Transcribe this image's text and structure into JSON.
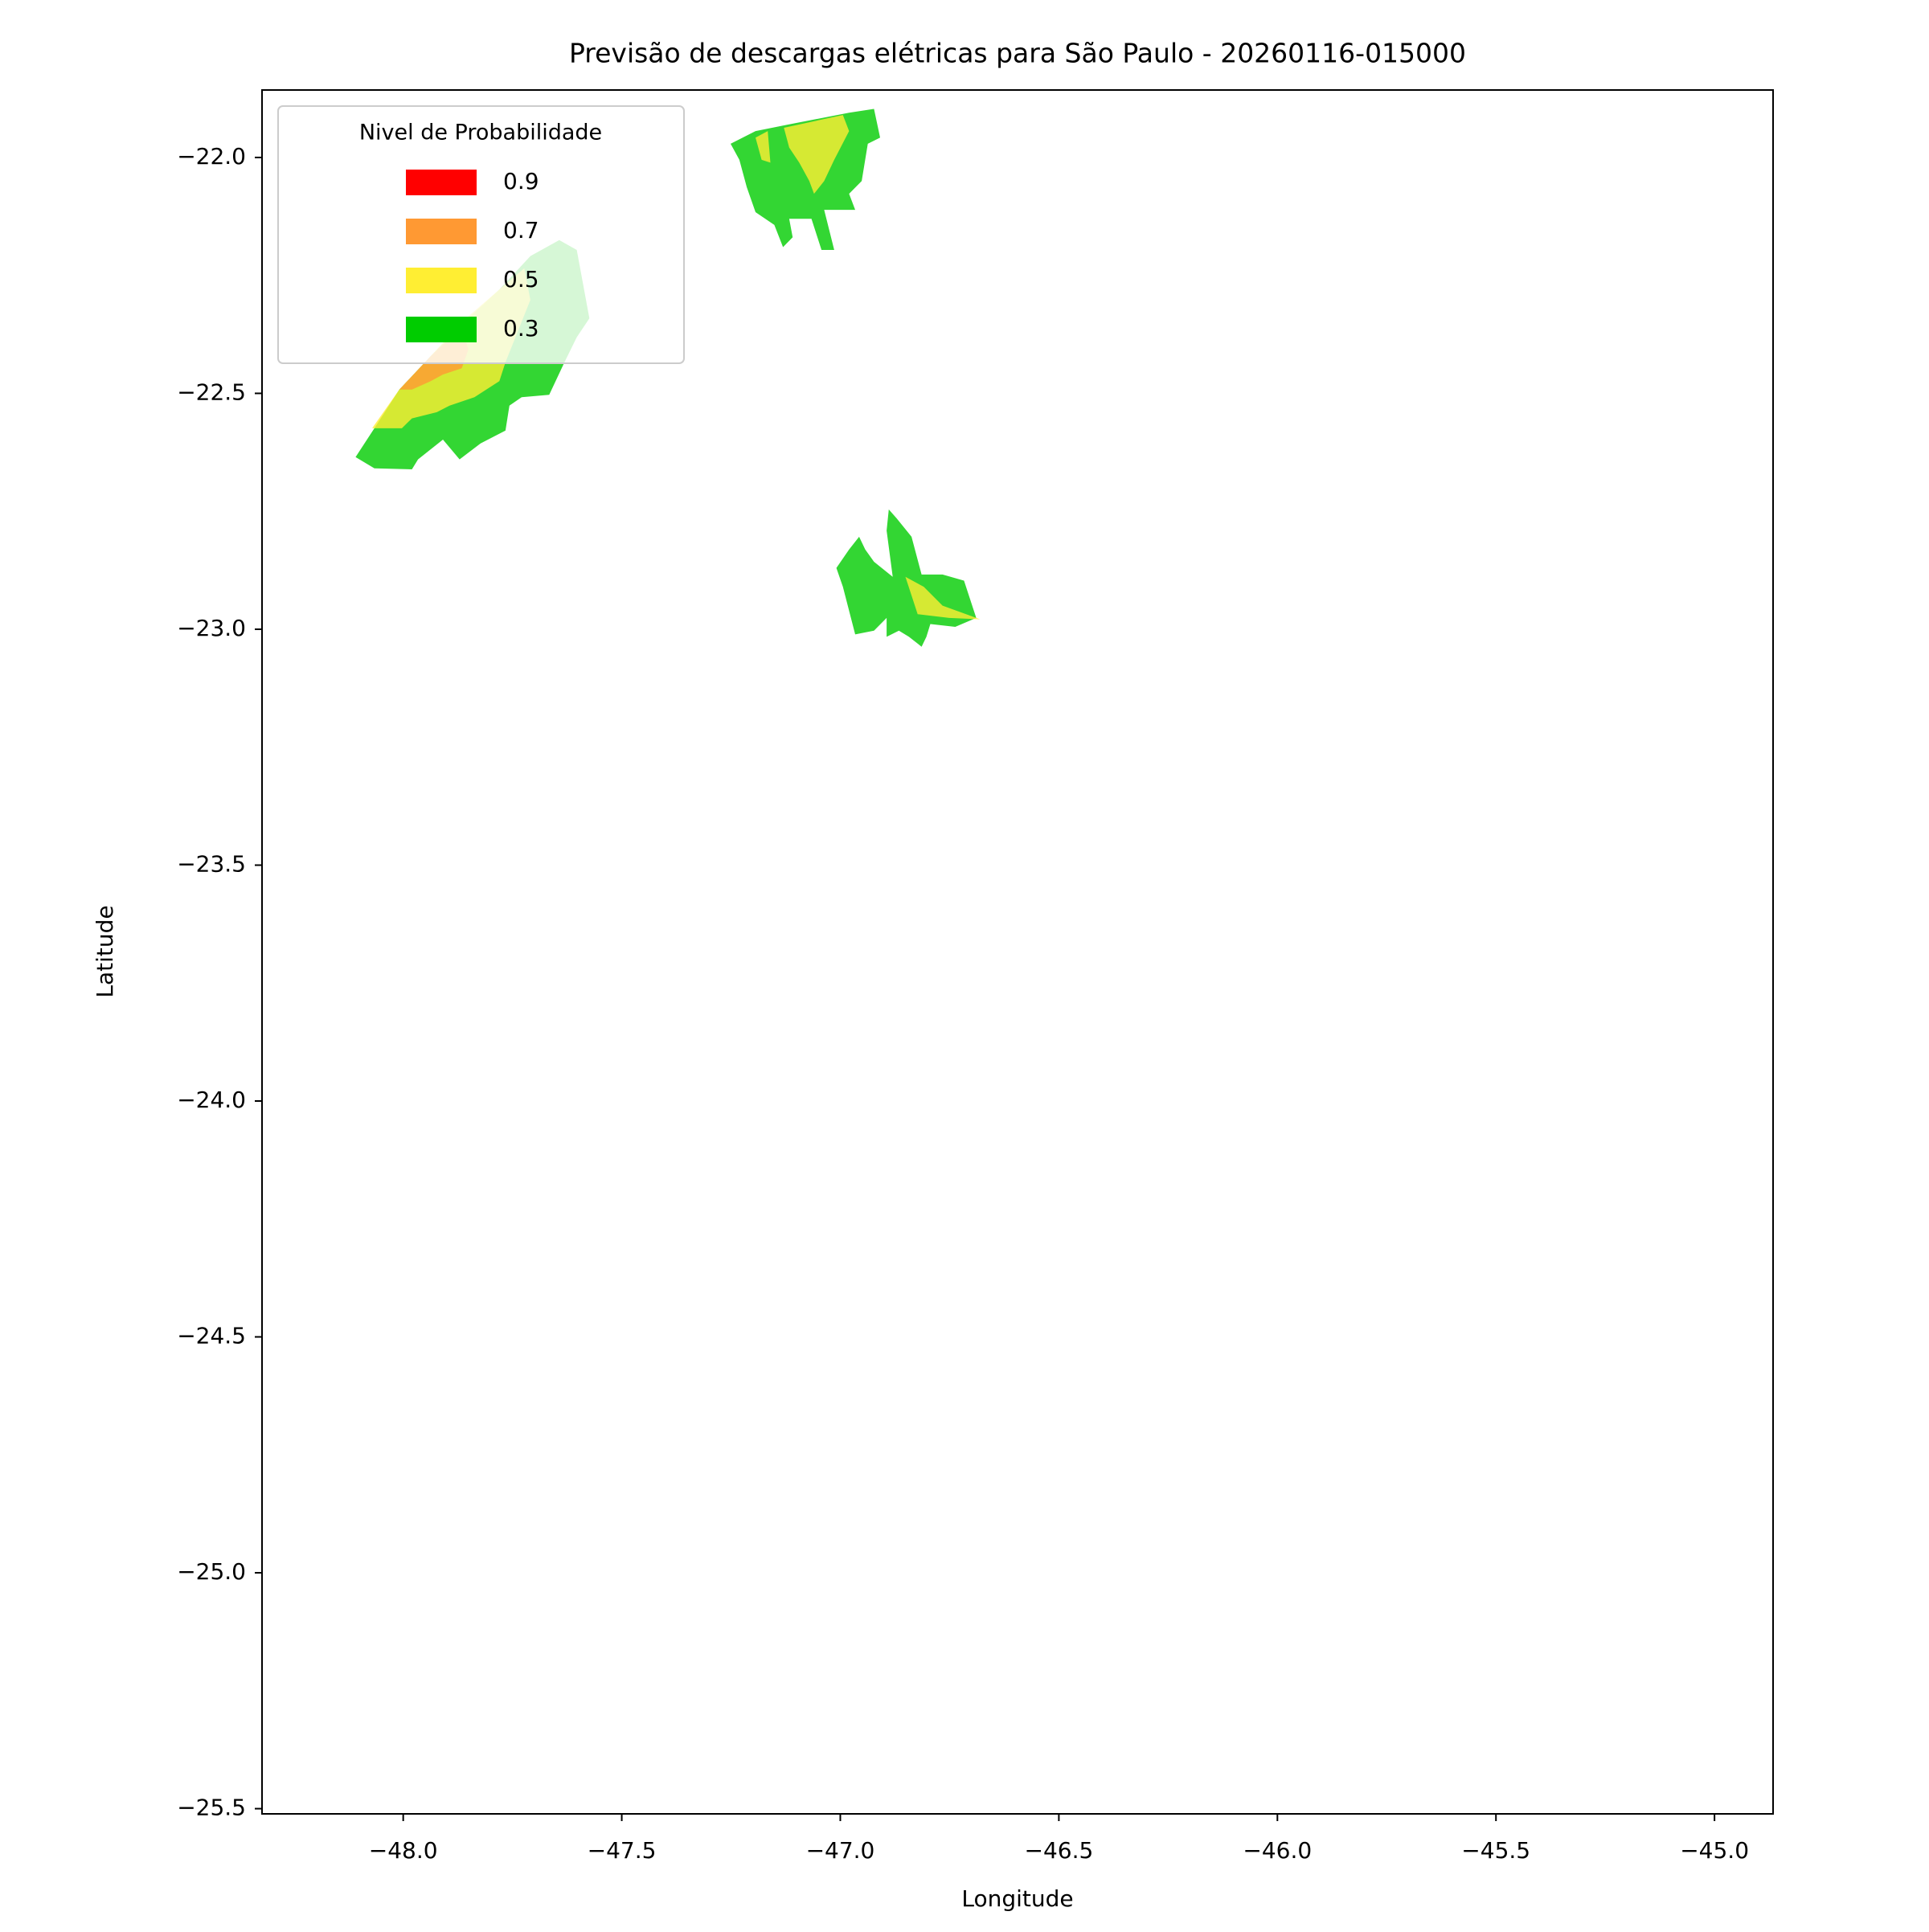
{
  "chart_data": {
    "type": "filled-contour",
    "title": "Previsão de descargas elétricas para São Paulo - 20260116-015000",
    "xlabel": "Longitude",
    "ylabel": "Latitude",
    "legend_title": "Nivel de Probabilidade",
    "legend": "upper left",
    "xlim": [
      -48.323,
      -44.866
    ],
    "ylim": [
      -25.511,
      -21.857
    ],
    "xticks": [
      {
        "value": -48,
        "label": "−48.0"
      },
      {
        "value": -47.5,
        "label": "−47.5"
      },
      {
        "value": -47,
        "label": "−47.0"
      },
      {
        "value": -46.5,
        "label": "−46.5"
      },
      {
        "value": -46,
        "label": "−46.0"
      },
      {
        "value": -45.5,
        "label": "−45.5"
      },
      {
        "value": -45,
        "label": "−45.0"
      }
    ],
    "yticks": [
      {
        "value": -22,
        "label": "−22.0"
      },
      {
        "value": -22.5,
        "label": "−22.5"
      },
      {
        "value": -23,
        "label": "−23.0"
      },
      {
        "value": -23.5,
        "label": "−23.5"
      },
      {
        "value": -24,
        "label": "−24.0"
      },
      {
        "value": -24.5,
        "label": "−24.5"
      },
      {
        "value": -25,
        "label": "−25.0"
      },
      {
        "value": -25.5,
        "label": "−25.5"
      }
    ],
    "series": [
      {
        "name": "0.9",
        "color": "#ff0000",
        "regions": []
      },
      {
        "name": "0.7",
        "color": "#ff9933",
        "regions": [
          {
            "x": [
              -48.009,
              -47.937,
              -47.866,
              -47.851,
              -47.866,
              -47.909,
              -47.937,
              -47.98
            ],
            "y": [
              -22.492,
              -22.421,
              -22.36,
              -22.407,
              -22.447,
              -22.46,
              -22.474,
              -22.492
            ]
          }
        ]
      },
      {
        "name": "0.5",
        "color": "#ffee33",
        "regions": [
          {
            "x": [
              -48.071,
              -48.009,
              -47.937,
              -47.866,
              -47.78,
              -47.723,
              -47.709,
              -47.766,
              -47.78,
              -47.837,
              -47.894,
              -47.923,
              -47.98,
              -48.003
            ],
            "y": [
              -22.574,
              -22.492,
              -22.421,
              -22.349,
              -22.28,
              -22.235,
              -22.302,
              -22.434,
              -22.474,
              -22.508,
              -22.526,
              -22.54,
              -22.553,
              -22.574
            ]
          },
          {
            "x": [
              -47.129,
              -46.994,
              -46.98,
              -47.014,
              -47.037,
              -47.06,
              -47.071,
              -47.094,
              -47.117
            ],
            "y": [
              -21.937,
              -21.91,
              -21.944,
              -22.005,
              -22.05,
              -22.077,
              -22.05,
              -22.011,
              -21.979
            ]
          },
          {
            "x": [
              -47.194,
              -47.166,
              -47.16,
              -47.18
            ],
            "y": [
              -21.958,
              -21.944,
              -22.011,
              -22.005
            ]
          },
          {
            "x": [
              -46.851,
              -46.809,
              -46.766,
              -46.68,
              -46.751,
              -46.823
            ],
            "y": [
              -22.889,
              -22.91,
              -22.95,
              -22.979,
              -22.976,
              -22.968
            ]
          }
        ]
      },
      {
        "name": "0.3",
        "color": "#00cc00",
        "regions": [
          {
            "x": [
              -48.109,
              -48.066,
              -48.009,
              -47.937,
              -47.866,
              -47.78,
              -47.709,
              -47.643,
              -47.603,
              -47.574,
              -47.603,
              -47.631,
              -47.666,
              -47.729,
              -47.757,
              -47.766,
              -47.823,
              -47.871,
              -47.909,
              -47.966,
              -47.98,
              -48.066
            ],
            "y": [
              -22.635,
              -22.574,
              -22.492,
              -22.421,
              -22.354,
              -22.28,
              -22.209,
              -22.175,
              -22.196,
              -22.341,
              -22.381,
              -22.434,
              -22.503,
              -22.508,
              -22.526,
              -22.579,
              -22.606,
              -22.64,
              -22.598,
              -22.64,
              -22.661,
              -22.659
            ]
          },
          {
            "x": [
              -47.251,
              -47.194,
              -47.123,
              -46.98,
              -46.923,
              -46.909,
              -46.937,
              -46.951,
              -46.98,
              -46.966,
              -47.037,
              -47.014,
              -47.043,
              -47.066,
              -47.117,
              -47.109,
              -47.131,
              -47.151,
              -47.194,
              -47.214,
              -47.231
            ],
            "y": [
              -21.971,
              -21.944,
              -21.931,
              -21.905,
              -21.897,
              -21.958,
              -21.971,
              -22.05,
              -22.077,
              -22.111,
              -22.111,
              -22.196,
              -22.196,
              -22.13,
              -22.13,
              -22.169,
              -22.19,
              -22.143,
              -22.116,
              -22.063,
              -22.005
            ]
          },
          {
            "x": [
              -47.009,
              -46.98,
              -46.957,
              -46.943,
              -46.923,
              -46.88,
              -46.894,
              -46.889,
              -46.871,
              -46.837,
              -46.814,
              -46.766,
              -46.717,
              -46.689,
              -46.737,
              -46.794,
              -46.803,
              -46.814,
              -46.843,
              -46.866,
              -46.894,
              -46.894,
              -46.923,
              -46.966,
              -46.994
            ],
            "y": [
              -22.87,
              -22.831,
              -22.804,
              -22.831,
              -22.857,
              -22.889,
              -22.791,
              -22.746,
              -22.765,
              -22.804,
              -22.884,
              -22.884,
              -22.897,
              -22.976,
              -22.995,
              -22.989,
              -23.016,
              -23.037,
              -23.016,
              -23.003,
              -23.016,
              -22.976,
              -23.003,
              -23.011,
              -22.91
            ]
          }
        ]
      }
    ]
  }
}
